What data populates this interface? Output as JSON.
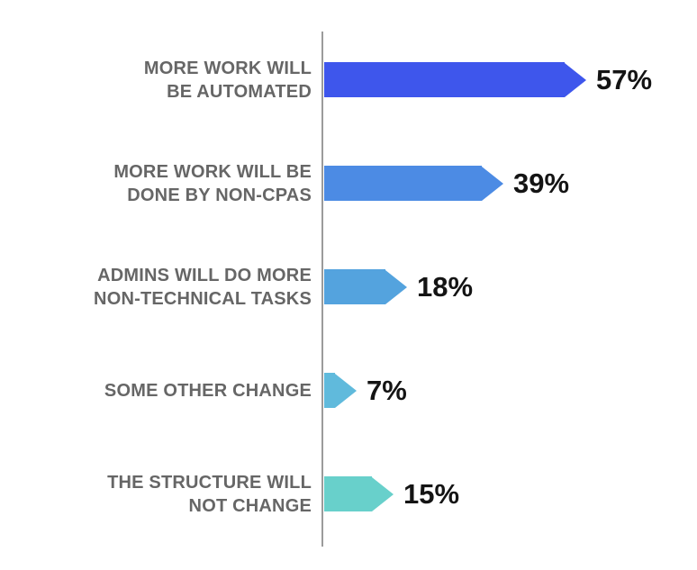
{
  "chart_data": {
    "type": "bar",
    "orientation": "horizontal",
    "title": "",
    "categories": [
      "MORE WORK WILL BE AUTOMATED",
      "MORE WORK WILL BE DONE BY NON-CPAS",
      "ADMINS WILL DO MORE NON-TECHNICAL TASKS",
      "SOME OTHER CHANGE",
      "THE STRUCTURE WILL NOT CHANGE"
    ],
    "values": [
      57,
      39,
      18,
      7,
      15
    ],
    "value_labels": [
      "57%",
      "39%",
      "18%",
      "7%",
      "15%"
    ],
    "bar_colors": [
      "#3E56EC",
      "#4C8BE4",
      "#54A3DE",
      "#60BADC",
      "#68D0CB"
    ],
    "xlim": [
      0,
      60
    ],
    "grid": false,
    "legend": false,
    "axis_color": "#9B9B9B",
    "label_color": "#666666",
    "value_color": "#141414"
  },
  "rows": [
    {
      "label_lines": [
        "MORE WORK WILL",
        "BE AUTOMATED"
      ],
      "value": 57,
      "value_label": "57%",
      "color": "#3E56EC"
    },
    {
      "label_lines": [
        "MORE WORK WILL BE",
        "DONE BY NON-CPAS"
      ],
      "value": 39,
      "value_label": "39%",
      "color": "#4C8BE4"
    },
    {
      "label_lines": [
        "ADMINS WILL DO MORE",
        "NON-TECHNICAL TASKS"
      ],
      "value": 18,
      "value_label": "18%",
      "color": "#54A3DE"
    },
    {
      "label_lines": [
        "SOME OTHER CHANGE"
      ],
      "value": 7,
      "value_label": "7%",
      "color": "#60BADC"
    },
    {
      "label_lines": [
        "THE STRUCTURE WILL",
        "NOT CHANGE"
      ],
      "value": 15,
      "value_label": "15%",
      "color": "#68D0CB"
    }
  ]
}
